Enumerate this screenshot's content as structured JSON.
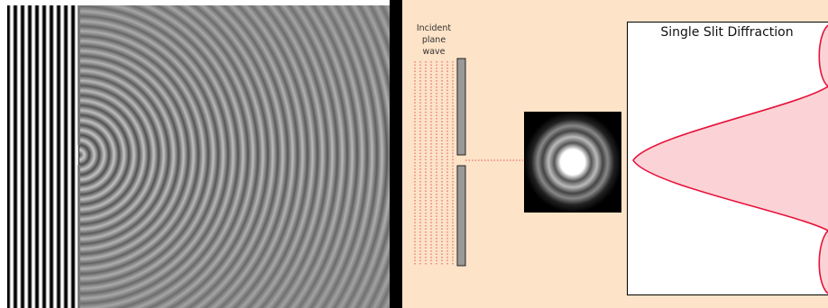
{
  "incident_label": [
    "Incident",
    "plane",
    "wave"
  ],
  "diagram_title": "Single Slit Diffraction"
}
